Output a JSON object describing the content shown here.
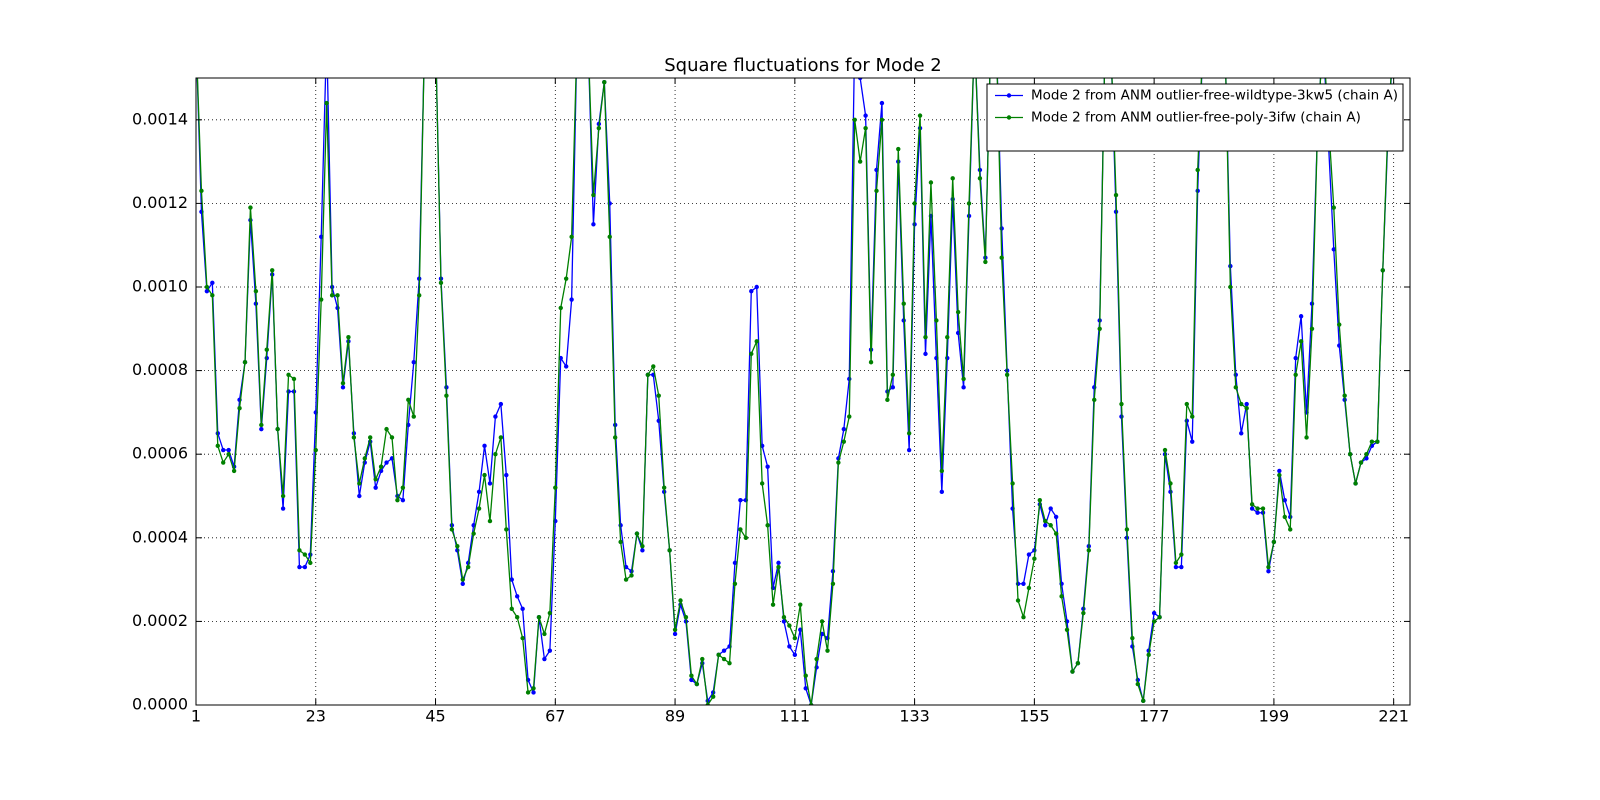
{
  "chart_data": {
    "type": "line",
    "title": "Square fluctuations for Mode 2",
    "x": [
      1,
      2,
      3,
      4,
      5,
      6,
      7,
      8,
      9,
      10,
      11,
      12,
      13,
      14,
      15,
      16,
      17,
      18,
      19,
      20,
      21,
      22,
      23,
      24,
      25,
      26,
      27,
      28,
      29,
      30,
      31,
      32,
      33,
      34,
      35,
      36,
      37,
      38,
      39,
      40,
      41,
      42,
      43,
      44,
      45,
      46,
      47,
      48,
      49,
      50,
      51,
      52,
      53,
      54,
      55,
      56,
      57,
      58,
      59,
      60,
      61,
      62,
      63,
      64,
      65,
      66,
      67,
      68,
      69,
      70,
      71,
      72,
      73,
      74,
      75,
      76,
      77,
      78,
      79,
      80,
      81,
      82,
      83,
      84,
      85,
      86,
      87,
      88,
      89,
      90,
      91,
      92,
      93,
      94,
      95,
      96,
      97,
      98,
      99,
      100,
      101,
      102,
      103,
      104,
      105,
      106,
      107,
      108,
      109,
      110,
      111,
      112,
      113,
      114,
      115,
      116,
      117,
      118,
      119,
      120,
      121,
      122,
      123,
      124,
      125,
      126,
      127,
      128,
      129,
      130,
      131,
      132,
      133,
      134,
      135,
      136,
      137,
      138,
      139,
      140,
      141,
      142,
      143,
      144,
      145,
      146,
      147,
      148,
      149,
      150,
      151,
      152,
      153,
      154,
      155,
      156,
      157,
      158,
      159,
      160,
      161,
      162,
      163,
      164,
      165,
      166,
      167,
      168,
      169,
      170,
      171,
      172,
      173,
      174,
      175,
      176,
      177,
      178,
      179,
      180,
      181,
      182,
      183,
      184,
      185,
      186,
      187,
      188,
      189,
      190,
      191,
      192,
      193,
      194,
      195,
      196,
      197,
      198,
      199,
      200,
      201,
      202,
      203,
      204,
      205,
      206,
      207,
      208,
      209,
      210,
      211,
      212,
      213,
      214,
      215,
      216,
      217,
      218,
      219,
      220,
      221
    ],
    "series": [
      {
        "name": "Mode 2 from ANM outlier-free-wildtype-3kw5 (chain A)",
        "color": "#0000ff",
        "values": [
          0.0016,
          0.00118,
          0.00099,
          0.00101,
          0.00065,
          0.00061,
          0.00061,
          0.00057,
          0.00073,
          0.00082,
          0.00116,
          0.00096,
          0.00066,
          0.00083,
          0.00103,
          0.00066,
          0.00047,
          0.00075,
          0.00075,
          0.00033,
          0.00033,
          0.00036,
          0.0007,
          0.00112,
          0.0016,
          0.001,
          0.00095,
          0.00076,
          0.00087,
          0.00065,
          0.0005,
          0.00058,
          0.00063,
          0.00052,
          0.00056,
          0.00058,
          0.00059,
          0.0005,
          0.00049,
          0.00067,
          0.00082,
          0.00102,
          0.0016,
          0.0016,
          0.0016,
          0.00102,
          0.00076,
          0.00043,
          0.00037,
          0.00029,
          0.00034,
          0.00043,
          0.00051,
          0.00062,
          0.00053,
          0.00069,
          0.00072,
          0.00055,
          0.0003,
          0.00026,
          0.00023,
          6e-05,
          3e-05,
          0.00021,
          0.00011,
          0.00013,
          0.00044,
          0.00083,
          0.00081,
          0.00097,
          0.0016,
          0.0016,
          0.0016,
          0.00115,
          0.00139,
          0.00149,
          0.0012,
          0.00067,
          0.00043,
          0.00033,
          0.00032,
          0.00041,
          0.00037,
          0.00079,
          0.00079,
          0.00068,
          0.00051,
          0.00037,
          0.00017,
          0.00024,
          0.0002,
          6e-05,
          5e-05,
          0.0001,
          1e-05,
          3e-05,
          0.00012,
          0.00013,
          0.00014,
          0.00034,
          0.00049,
          0.00049,
          0.00099,
          0.001,
          0.00062,
          0.00057,
          0.00028,
          0.00034,
          0.0002,
          0.00014,
          0.00012,
          0.00018,
          4e-05,
          0,
          9e-05,
          0.00017,
          0.00016,
          0.00032,
          0.00059,
          0.00066,
          0.00078,
          0.0016,
          0.0015,
          0.00141,
          0.00085,
          0.00128,
          0.00144,
          0.00075,
          0.00076,
          0.0013,
          0.00092,
          0.00061,
          0.00115,
          0.00138,
          0.00084,
          0.00117,
          0.00083,
          0.00051,
          0.00083,
          0.00121,
          0.00089,
          0.00076,
          0.00117,
          0.0016,
          0.00128,
          0.00107,
          0.0016,
          0.0016,
          0.00114,
          0.0008,
          0.00047,
          0.00029,
          0.00029,
          0.00036,
          0.00037,
          0.00048,
          0.00043,
          0.00047,
          0.00045,
          0.00029,
          0.0002,
          8e-05,
          0.0001,
          0.00023,
          0.00038,
          0.00076,
          0.00092,
          0.0016,
          0.0016,
          0.00118,
          0.00069,
          0.0004,
          0.00014,
          6e-05,
          1e-05,
          0.00013,
          0.00022,
          0.00021,
          0.0006,
          0.00051,
          0.00033,
          0.00033,
          0.00068,
          0.00063,
          0.00123,
          0.0016,
          0.0016,
          0.0016,
          0.0016,
          0.0016,
          0.00105,
          0.00079,
          0.00065,
          0.00072,
          0.00047,
          0.00046,
          0.00046,
          0.00032,
          0.00039,
          0.00056,
          0.00049,
          0.00045,
          0.00083,
          0.00093,
          0.0007,
          0.00096,
          0.00137,
          0.0016,
          0.00135,
          0.00109,
          0.00086,
          0.00073,
          0.0006,
          0.00053,
          0.00058,
          0.00059,
          0.00062,
          0.00063,
          0.00104,
          0.00138,
          0.0016
        ]
      },
      {
        "name": "Mode 2 from ANM outlier-free-poly-3ifw (chain A)",
        "color": "#008000",
        "values": [
          0.0016,
          0.00123,
          0.001,
          0.00098,
          0.00062,
          0.00058,
          0.0006,
          0.00056,
          0.00071,
          0.00082,
          0.00119,
          0.00099,
          0.00067,
          0.00085,
          0.00104,
          0.00066,
          0.0005,
          0.00079,
          0.00078,
          0.00037,
          0.00036,
          0.00034,
          0.00061,
          0.00097,
          0.00144,
          0.00098,
          0.00098,
          0.00077,
          0.00088,
          0.00064,
          0.00053,
          0.00059,
          0.00064,
          0.00054,
          0.00057,
          0.00066,
          0.00064,
          0.00049,
          0.00052,
          0.00073,
          0.00069,
          0.00098,
          0.0016,
          0.0016,
          0.0016,
          0.00101,
          0.00074,
          0.00042,
          0.00038,
          0.0003,
          0.00033,
          0.00041,
          0.00047,
          0.00055,
          0.00044,
          0.0006,
          0.00064,
          0.00042,
          0.00023,
          0.00021,
          0.00016,
          3e-05,
          4e-05,
          0.00021,
          0.00017,
          0.00022,
          0.00052,
          0.00095,
          0.00102,
          0.00112,
          0.0016,
          0.0016,
          0.0016,
          0.00122,
          0.00138,
          0.00149,
          0.00112,
          0.00064,
          0.00039,
          0.0003,
          0.00031,
          0.00041,
          0.00038,
          0.00079,
          0.00081,
          0.00074,
          0.00052,
          0.00037,
          0.00018,
          0.00025,
          0.00021,
          7e-05,
          5e-05,
          0.00011,
          0,
          2e-05,
          0.00012,
          0.00011,
          0.0001,
          0.00029,
          0.00042,
          0.0004,
          0.00084,
          0.00087,
          0.00053,
          0.00043,
          0.00024,
          0.00033,
          0.00021,
          0.00019,
          0.00016,
          0.00024,
          7e-05,
          0,
          0.00011,
          0.0002,
          0.00013,
          0.00029,
          0.00058,
          0.00063,
          0.00069,
          0.0014,
          0.0013,
          0.00138,
          0.00082,
          0.00123,
          0.0014,
          0.00073,
          0.00079,
          0.00133,
          0.00096,
          0.00065,
          0.0012,
          0.00141,
          0.00088,
          0.00125,
          0.00092,
          0.00056,
          0.00088,
          0.00126,
          0.00094,
          0.00078,
          0.0012,
          0.0016,
          0.00126,
          0.00106,
          0.0016,
          0.0016,
          0.00107,
          0.00079,
          0.00053,
          0.00025,
          0.00021,
          0.00028,
          0.00035,
          0.00049,
          0.00044,
          0.00043,
          0.00041,
          0.00026,
          0.00018,
          8e-05,
          0.0001,
          0.00022,
          0.00037,
          0.00073,
          0.0009,
          0.0016,
          0.0016,
          0.00122,
          0.00072,
          0.00042,
          0.00016,
          5e-05,
          1e-05,
          0.00012,
          0.0002,
          0.00021,
          0.00061,
          0.00053,
          0.00034,
          0.00036,
          0.00072,
          0.00069,
          0.00128,
          0.0016,
          0.0016,
          0.0016,
          0.0016,
          0.0016,
          0.001,
          0.00076,
          0.00072,
          0.00071,
          0.00048,
          0.00047,
          0.00047,
          0.00033,
          0.00039,
          0.00055,
          0.00045,
          0.00042,
          0.00079,
          0.00087,
          0.00064,
          0.0009,
          0.00137,
          0.0016,
          0.0014,
          0.00119,
          0.00091,
          0.00074,
          0.0006,
          0.00053,
          0.00058,
          0.0006,
          0.00063,
          0.00063,
          0.00104,
          0.0014,
          0.0016
        ]
      }
    ],
    "xlim": [
      1,
      224
    ],
    "xticks": [
      1,
      23,
      45,
      67,
      89,
      111,
      133,
      155,
      177,
      199,
      221
    ],
    "ylim": [
      0,
      0.0015
    ],
    "yticks": [
      {
        "value": 0,
        "label": "0.0000"
      },
      {
        "value": 0.0002,
        "label": "0.0002"
      },
      {
        "value": 0.0004,
        "label": "0.0004"
      },
      {
        "value": 0.0006,
        "label": "0.0006"
      },
      {
        "value": 0.0008,
        "label": "0.0008"
      },
      {
        "value": 0.001,
        "label": "0.0010"
      },
      {
        "value": 0.0012,
        "label": "0.0012"
      },
      {
        "value": 0.0014,
        "label": "0.0014"
      }
    ],
    "grid": true,
    "legend": "upper right"
  }
}
